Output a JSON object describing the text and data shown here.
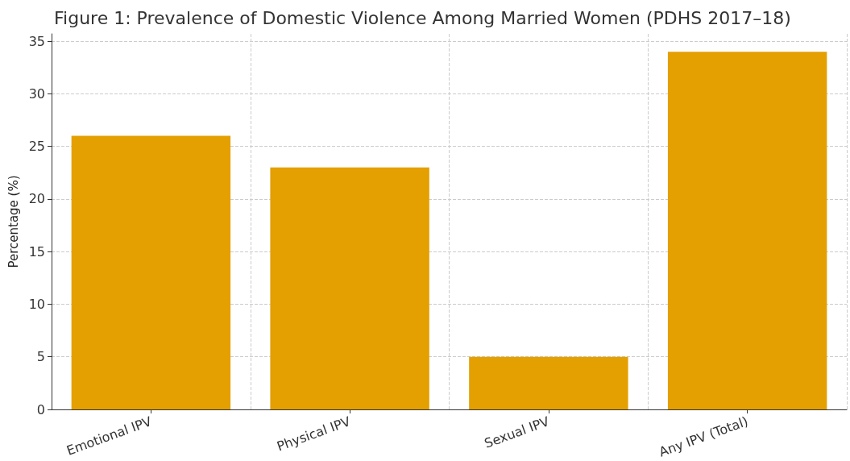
{
  "chart_data": {
    "type": "bar",
    "title": "Figure 1: Prevalence of Domestic Violence Among Married Women (PDHS 2017–18)",
    "ylabel": "Percentage (%)",
    "categories": [
      "Emotional IPV",
      "Physical IPV",
      "Sexual IPV",
      "Any IPV (Total)"
    ],
    "values": [
      26,
      23,
      5,
      34
    ],
    "color": "#e49f00",
    "ylim": [
      0,
      35.7
    ],
    "yticks": [
      0,
      5,
      10,
      15,
      20,
      25,
      30,
      35
    ],
    "grid": true
  }
}
